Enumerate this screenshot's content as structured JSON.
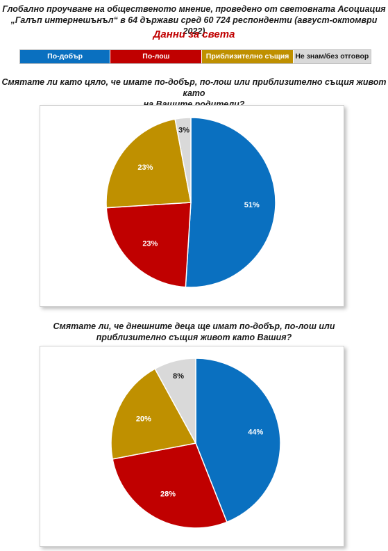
{
  "header": {
    "line1": "Глобално проучване на общественото мнение, проведено от световната Асоциация",
    "line2": "„Галъп интернешънъл“ в 64 държави сред 60 724 респонденти (август-октомври 2022)"
  },
  "subtitle": "Данни за света",
  "colors": {
    "better": "#0a70c0",
    "worse": "#c00000",
    "same": "#bf9000",
    "dk": "#d9d9d9"
  },
  "legend": [
    {
      "label": "По-добър",
      "color": "#0a70c0",
      "text_color": "#ffffff"
    },
    {
      "label": "По-лош",
      "color": "#c00000",
      "text_color": "#ffffff"
    },
    {
      "label": "Приблизително същия",
      "color": "#bf9000",
      "text_color": "#ffffff"
    },
    {
      "label": "Не знам/без отговор",
      "color": "#d9d9d9",
      "text_color": "#1a1a1a"
    }
  ],
  "chart_data": [
    {
      "type": "pie",
      "question_lines": [
        "Смятате ли като цяло, че имате по-добър, по-лош или приблизително същия живот като",
        "на Вашите родители?"
      ],
      "categories": [
        "По-добър",
        "По-лош",
        "Приблизително същия",
        "Не знам/без отговор"
      ],
      "values": [
        51,
        23,
        23,
        3
      ],
      "labels": [
        "51%",
        "23%",
        "23%",
        "3%"
      ]
    },
    {
      "type": "pie",
      "question_lines": [
        "Смятате ли, че днешните деца ще имат по-добър, по-лош или",
        "приблизително същия живот като Вашия?"
      ],
      "categories": [
        "По-добър",
        "По-лош",
        "Приблизително същия",
        "Не знам/без отговор"
      ],
      "values": [
        44,
        28,
        20,
        8
      ],
      "labels": [
        "44%",
        "28%",
        "20%",
        "8%"
      ]
    }
  ]
}
